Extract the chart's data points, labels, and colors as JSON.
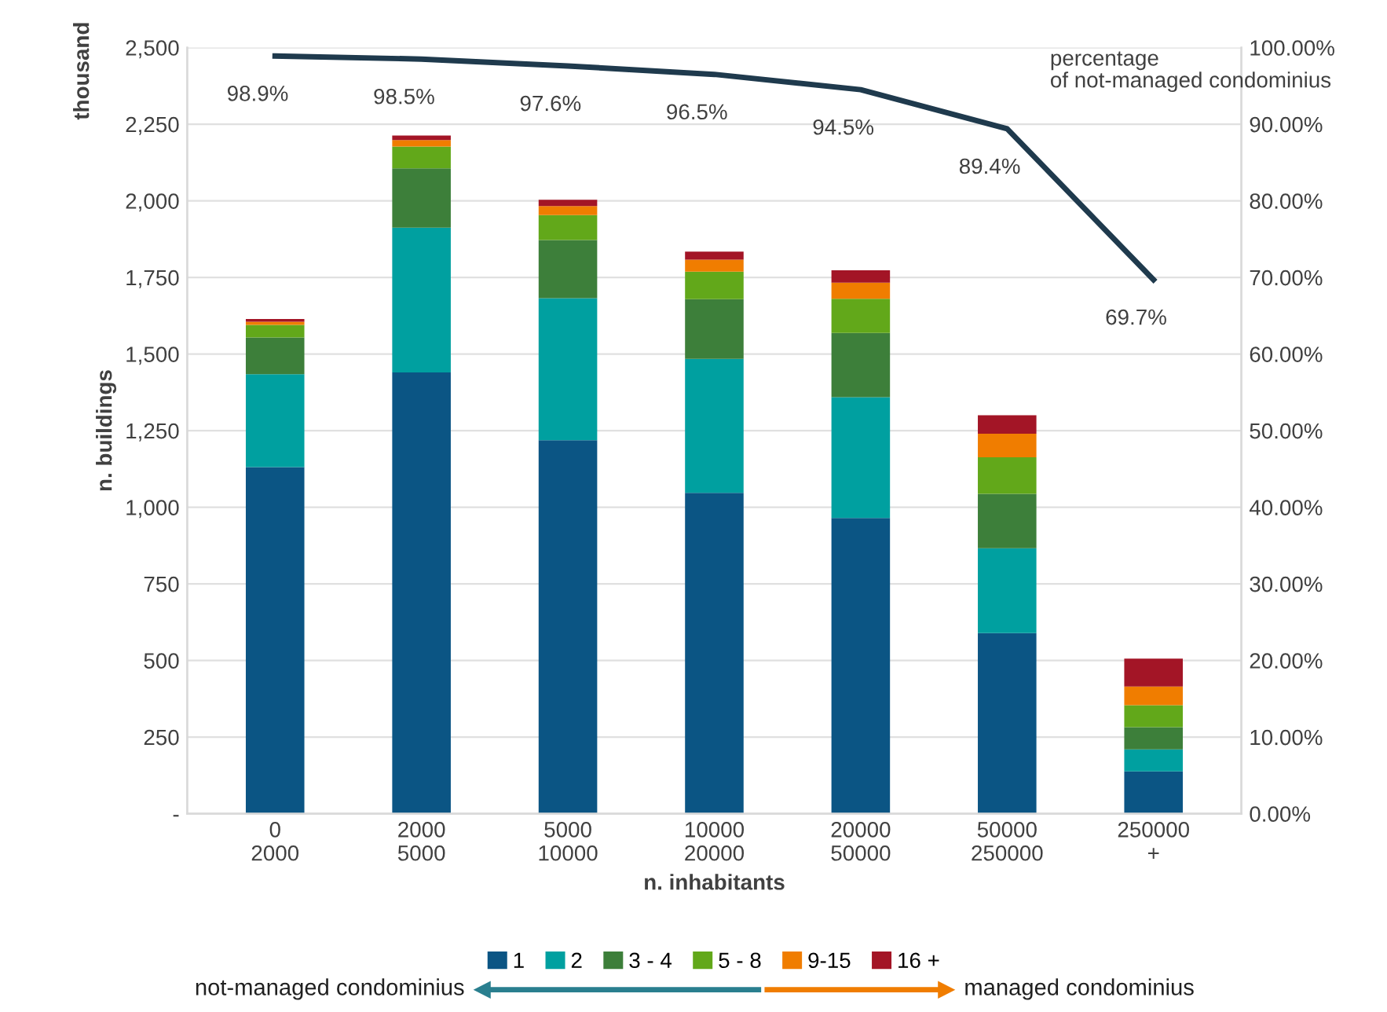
{
  "chart_data": {
    "type": "bar",
    "stacked": true,
    "xlabel": "n. inhabitants",
    "ylabel": "n. buildings",
    "categories": [
      "0\n2000",
      "2000\n5000",
      "5000\n10000",
      "10000\n20000",
      "20000\n50000",
      "50000\n250000",
      "250000\n+"
    ],
    "series": [
      {
        "name": "1",
        "color": "#0b5584",
        "values": [
          1131,
          1440,
          1219,
          1047,
          965,
          589,
          138
        ]
      },
      {
        "name": "2",
        "color": "#00a0a0",
        "values": [
          303,
          472,
          463,
          437,
          394,
          277,
          72
        ]
      },
      {
        "name": "3 - 4",
        "color": "#3d7f3a",
        "values": [
          120,
          194,
          190,
          195,
          210,
          178,
          72
        ]
      },
      {
        "name": "5 - 8",
        "color": "#62a81a",
        "values": [
          41,
          71,
          81,
          90,
          111,
          119,
          72
        ]
      },
      {
        "name": "9-15",
        "color": "#f07d00",
        "values": [
          10,
          21,
          30,
          39,
          53,
          77,
          61
        ]
      },
      {
        "name": "16 +",
        "color": "#a31526",
        "values": [
          9,
          15,
          20,
          26,
          40,
          60,
          91
        ]
      },
      {
        "type": "line",
        "axis": "y2",
        "color": "#1f3a4d",
        "values": [
          98.9,
          98.5,
          97.6,
          96.5,
          94.5,
          89.4,
          69.7
        ],
        "value_labels": [
          "98.9%",
          "98.5%",
          "97.6%",
          "96.5%",
          "94.5%",
          "89.4%",
          "69.7%"
        ]
      }
    ],
    "ylim": [
      0,
      2500
    ],
    "yticks": [
      {
        "value": 0,
        "label": "-"
      },
      250,
      500,
      750,
      {
        "value": 1000,
        "label": "1,000"
      },
      {
        "value": 1250,
        "label": "1,250"
      },
      {
        "value": 1500,
        "label": "1,500"
      },
      {
        "value": 1750,
        "label": "1,750"
      },
      {
        "value": 2000,
        "label": "2,000"
      },
      {
        "value": 2250,
        "label": "2,250"
      },
      {
        "value": 2500,
        "label": "2,500"
      }
    ],
    "y2lim": [
      0,
      100
    ],
    "y2ticks": [
      {
        "value": 0,
        "label": "0.00%"
      },
      {
        "value": 10,
        "label": "10.00%"
      },
      {
        "value": 20,
        "label": "20.00%"
      },
      {
        "value": 30,
        "label": "30.00%"
      },
      {
        "value": 40,
        "label": "40.00%"
      },
      {
        "value": 50,
        "label": "50.00%"
      },
      {
        "value": 60,
        "label": "60.00%"
      },
      {
        "value": 70,
        "label": "70.00%"
      },
      {
        "value": 80,
        "label": "80.00%"
      },
      {
        "value": 90,
        "label": "90.00%"
      },
      {
        "value": 100,
        "label": "100.00%"
      }
    ],
    "grid": "y",
    "legend": "bottom",
    "annotations": [
      "thousand",
      "percentage\nof not-managed condominius",
      "not-managed condominius",
      "managed condominius"
    ]
  }
}
